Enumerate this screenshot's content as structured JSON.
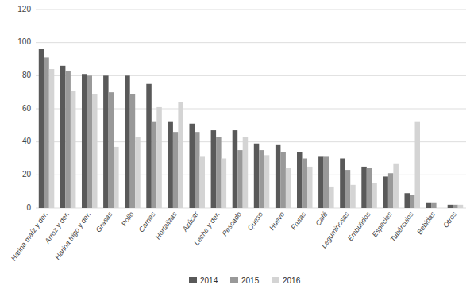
{
  "chart_data": {
    "type": "bar",
    "categories": [
      "Harina maíz y der.",
      "Arroz y der.",
      "Harina trigo y der.",
      "Grasas",
      "Pollo",
      "Carnes",
      "Hortalizas",
      "Azúcar",
      "Leche y der.",
      "Pescado",
      "Queso",
      "Huevo",
      "Frutas",
      "Café",
      "Leguminosas",
      "Embutidos",
      "Especies",
      "Tubérculos",
      "Bebidas",
      "Otros"
    ],
    "series": [
      {
        "name": "2014",
        "color": "#595959",
        "values": [
          96,
          86,
          81,
          80,
          80,
          75,
          52,
          51,
          47,
          47,
          39,
          38,
          34,
          31,
          30,
          25,
          19,
          9,
          3,
          2
        ]
      },
      {
        "name": "2015",
        "color": "#999999",
        "values": [
          91,
          83,
          80,
          70,
          69,
          52,
          46,
          46,
          43,
          35,
          35,
          34,
          30,
          31,
          23,
          24,
          21,
          8,
          3,
          2
        ]
      },
      {
        "name": "2016",
        "color": "#d4d4d4",
        "values": [
          84,
          71,
          69,
          37,
          43,
          61,
          64,
          31,
          30,
          43,
          32,
          24,
          25,
          13,
          14,
          15,
          27,
          52,
          0,
          2
        ]
      }
    ],
    "ylim": [
      0,
      120
    ],
    "yticks": [
      0,
      20,
      40,
      60,
      80,
      100,
      120
    ],
    "grid": true,
    "legend": "bottom"
  }
}
